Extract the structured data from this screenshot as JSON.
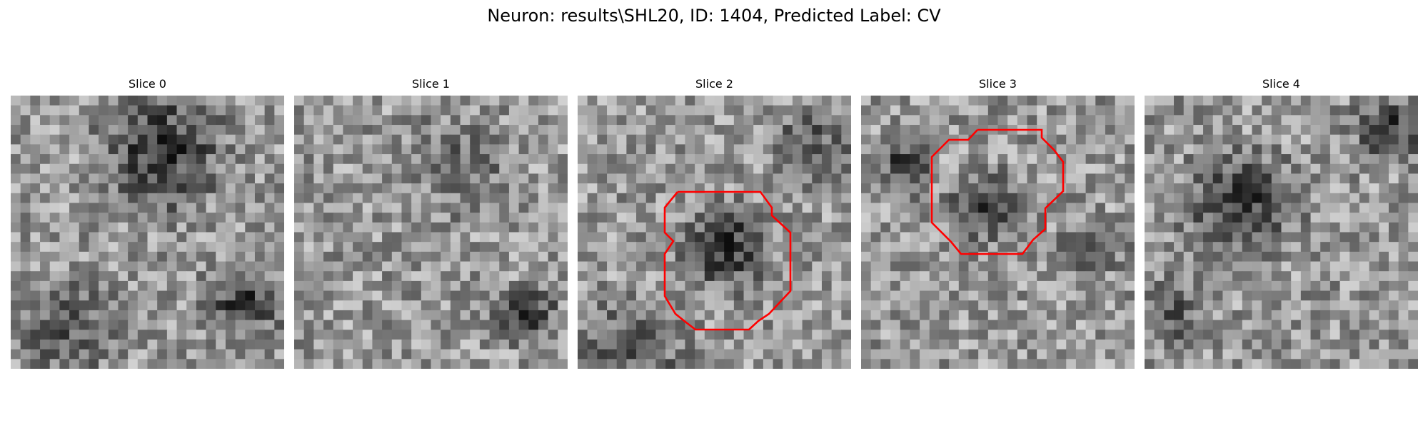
{
  "figure": {
    "title": "Neuron: results\\SHL20, ID: 1404, Predicted Label: CV"
  },
  "panels": [
    {
      "title": "Slice 0",
      "contour": false
    },
    {
      "title": "Slice 1",
      "contour": false
    },
    {
      "title": "Slice 2",
      "contour": true
    },
    {
      "title": "Slice 3",
      "contour": true
    },
    {
      "title": "Slice 4",
      "contour": false
    }
  ],
  "colors": {
    "contour": "#ff0000",
    "colormap": "grayscale"
  }
}
